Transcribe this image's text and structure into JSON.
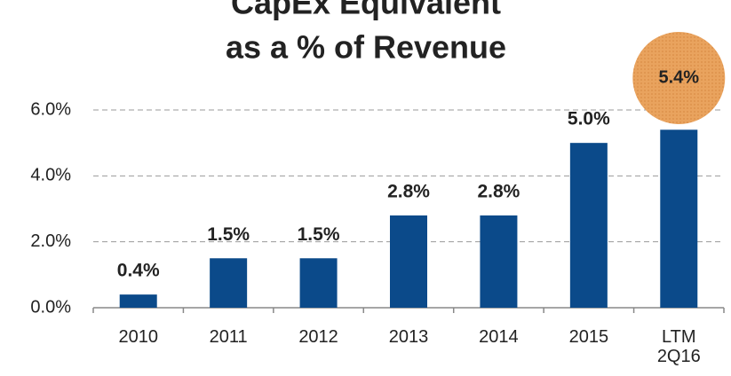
{
  "chart_data": {
    "type": "bar",
    "title": [
      "CapEx Equivalent",
      "as a % of Revenue"
    ],
    "categories": [
      "2010",
      "2011",
      "2012",
      "2013",
      "2014",
      "2015",
      "LTM 2Q16"
    ],
    "values": [
      0.4,
      1.5,
      1.5,
      2.8,
      2.8,
      5.0,
      5.4
    ],
    "value_labels": [
      "0.4%",
      "1.5%",
      "1.5%",
      "2.8%",
      "2.8%",
      "5.0%",
      "5.4%"
    ],
    "color": "#0b4a8a",
    "ylim": [
      0,
      6
    ],
    "yticks": [
      {
        "value": 0,
        "label": "0.0%"
      },
      {
        "value": 2,
        "label": "2.0%"
      },
      {
        "value": 4,
        "label": "4.0%"
      },
      {
        "value": 6,
        "label": "6.0%"
      }
    ],
    "grid": true
  }
}
